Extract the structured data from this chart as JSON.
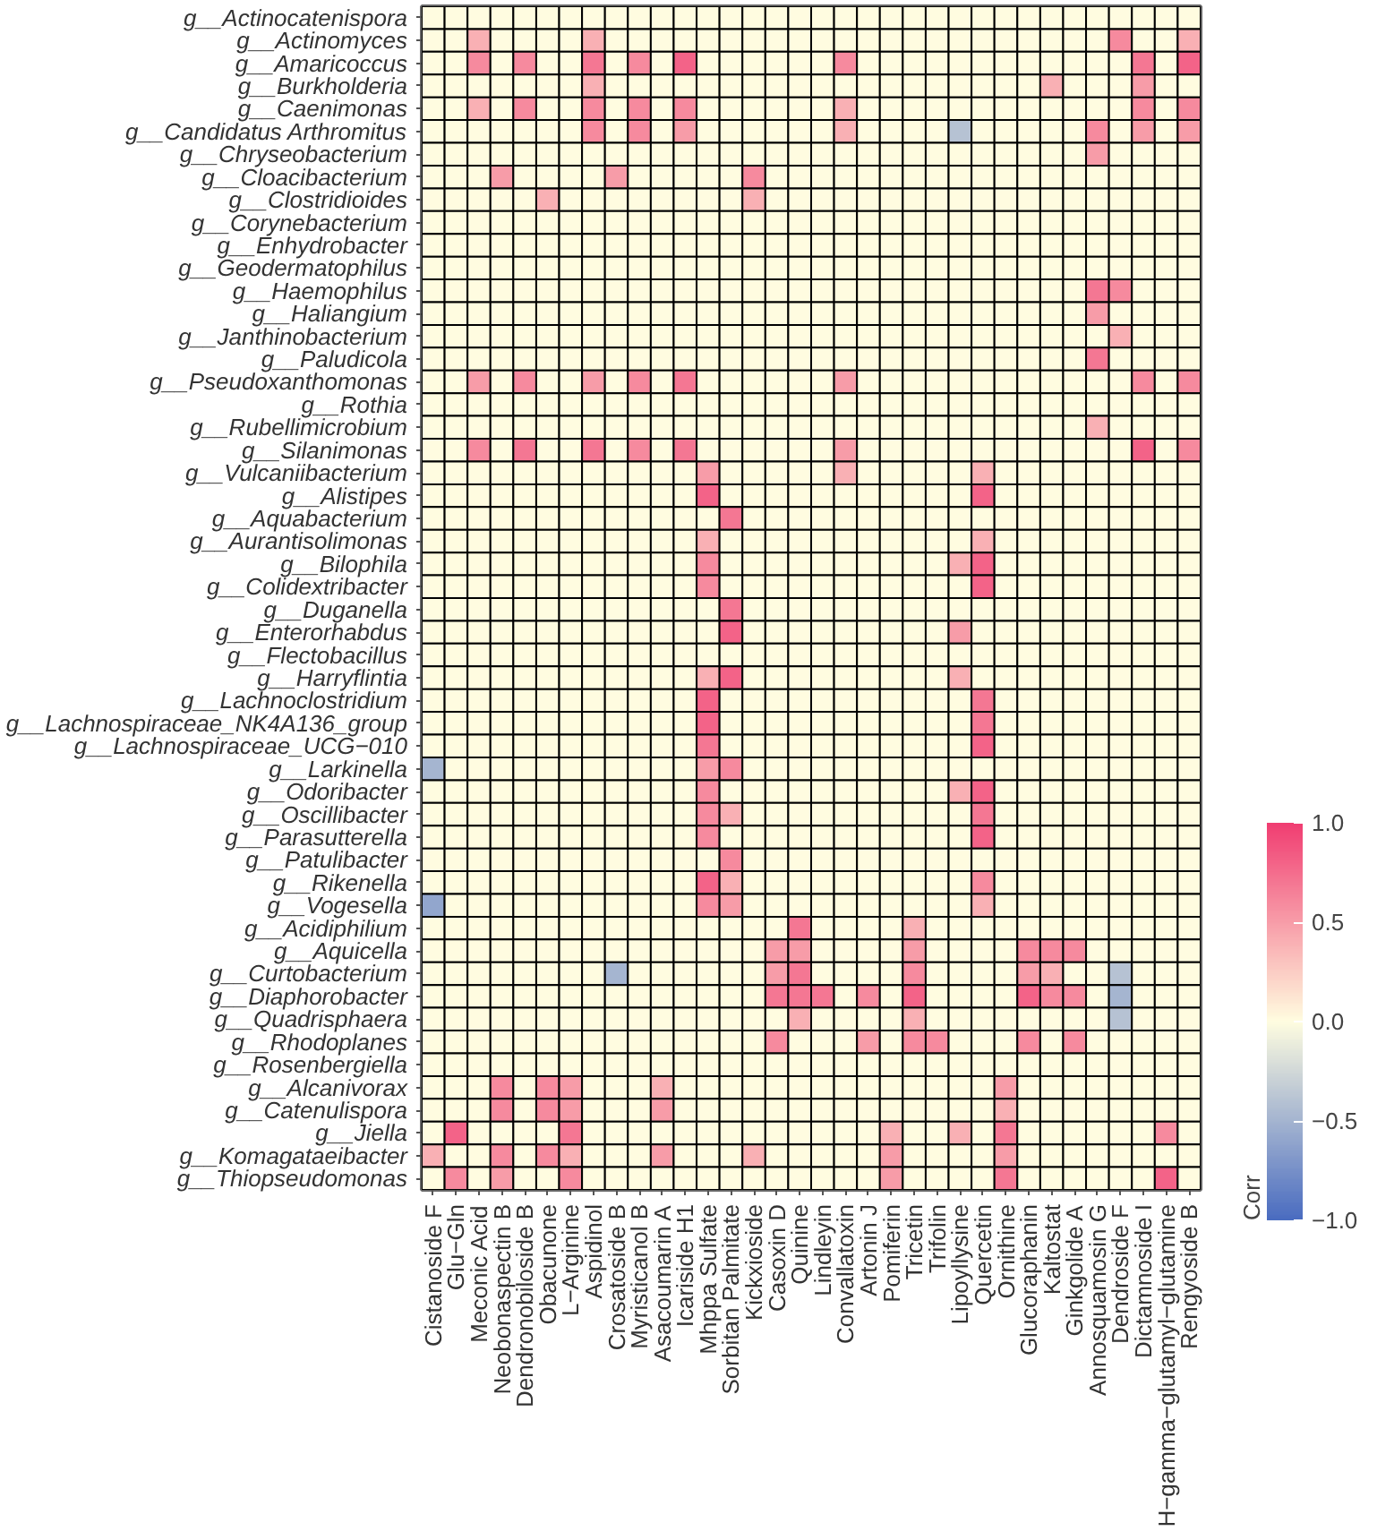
{
  "chart_data": {
    "type": "heatmap",
    "clabel": "Corr",
    "categories": [
      "Cistanoside F",
      "Glu−Gln",
      "Meconic Acid",
      "Neobonaspectin B",
      "Dendronobiloside B",
      "Obacunone",
      "L−Arginine",
      "Aspidinol",
      "Crosatoside B",
      "Myristicanol B",
      "Asacoumarin A",
      "Icariside H1",
      "Mhppa Sulfate",
      "Sorbitan Palmitate",
      "Kickxioside",
      "Casoxin D",
      "Quinine",
      "Lindleyin",
      "Convallatoxin",
      "Artonin J",
      "Pomiferin",
      "Tricetin",
      "Trifolin",
      "Lipoyllysine",
      "Quercetin",
      "Ornithine",
      "Glucoraphanin",
      "Kaltostat",
      "Ginkgolide A",
      "Annosquamosin G",
      "Dendroside F",
      "Dictamnoside I",
      "H−gamma−glutamyl−glutamine",
      "Rengyoside B"
    ],
    "y_categories": [
      "g__Actinocatenispora",
      "g__Actinomyces",
      "g__Amaricoccus",
      "g__Burkholderia",
      "g__Caenimonas",
      "g__Candidatus Arthromitus",
      "g__Chryseobacterium",
      "g__Cloacibacterium",
      "g__Clostridioides",
      "g__Corynebacterium",
      "g__Enhydrobacter",
      "g__Geodermatophilus",
      "g__Haemophilus",
      "g__Haliangium",
      "g__Janthinobacterium",
      "g__Paludicola",
      "g__Pseudoxanthomonas",
      "g__Rothia",
      "g__Rubellimicrobium",
      "g__Silanimonas",
      "g__Vulcaniibacterium",
      "g__Alistipes",
      "g__Aquabacterium",
      "g__Aurantisolimonas",
      "g__Bilophila",
      "g__Colidextribacter",
      "g__Duganella",
      "g__Enterorhabdus",
      "g__Flectobacillus",
      "g__Harryflintia",
      "g__Lachnoclostridium",
      "g__Lachnospiraceae_NK4A136_group",
      "g__Lachnospiraceae_UCG−010",
      "g__Larkinella",
      "g__Odoribacter",
      "g__Oscillibacter",
      "g__Parasutterella",
      "g__Patulibacter",
      "g__Rikenella",
      "g__Vogesella",
      "g__Acidiphilium",
      "g__Aquicella",
      "g__Curtobacterium",
      "g__Diaphorobacter",
      "g__Quadrisphaera",
      "g__Rhodoplanes",
      "g__Rosenbergiella",
      "g__Alcanivorax",
      "g__Catenulispora",
      "g__Jiella",
      "g__Komagataeibacter",
      "g__Thiopseudomonas"
    ],
    "clim": [
      -1,
      1
    ],
    "cticks": [
      {
        "value": -1,
        "label": "−1.0"
      },
      {
        "value": -0.5,
        "label": "−0.5"
      },
      {
        "value": 0,
        "label": "0.0"
      },
      {
        "value": 0.5,
        "label": "0.5"
      },
      {
        "value": 1,
        "label": "1.0"
      }
    ],
    "cells": [
      [
        0,
        0,
        0,
        0,
        0,
        0,
        0,
        0,
        0,
        0,
        0,
        0,
        0,
        0,
        0,
        0,
        0,
        0,
        0,
        0,
        0,
        0,
        0,
        0,
        0,
        0,
        0,
        0,
        0,
        0,
        0,
        0,
        0,
        0
      ],
      [
        0,
        0,
        0.4,
        0,
        0,
        0,
        0,
        0.4,
        0,
        0,
        0,
        0,
        0,
        0,
        0,
        0,
        0,
        0,
        0,
        0,
        0,
        0,
        0,
        0,
        0,
        0,
        0,
        0,
        0,
        0,
        0.6,
        0,
        0,
        0.4
      ],
      [
        0,
        0,
        0.6,
        0,
        0.6,
        0,
        0,
        0.7,
        0,
        0.6,
        0,
        0.8,
        0,
        0,
        0,
        0,
        0,
        0,
        0.6,
        0,
        0,
        0,
        0,
        0,
        0,
        0,
        0,
        0,
        0,
        0,
        0,
        0.7,
        0,
        0.8
      ],
      [
        0,
        0,
        0,
        0,
        0,
        0,
        0,
        0.4,
        0,
        0,
        0,
        0,
        0,
        0,
        0,
        0,
        0,
        0,
        0,
        0,
        0,
        0,
        0,
        0,
        0,
        0,
        0,
        0.4,
        0,
        0,
        0,
        0.5,
        0,
        0
      ],
      [
        0,
        0,
        0.4,
        0,
        0.6,
        0,
        0,
        0.6,
        0,
        0.6,
        0,
        0.6,
        0,
        0,
        0,
        0,
        0,
        0,
        0.4,
        0,
        0,
        0,
        0,
        0,
        0,
        0,
        0,
        0,
        0,
        0,
        0,
        0.6,
        0,
        0.6
      ],
      [
        0,
        0,
        0,
        0,
        0,
        0,
        0,
        0.6,
        0,
        0.6,
        0,
        0.5,
        0,
        0,
        0,
        0,
        0,
        0,
        0.4,
        0,
        0,
        0,
        0,
        -0.4,
        0,
        0,
        0,
        0,
        0,
        0.6,
        0,
        0.5,
        0,
        0.5
      ],
      [
        0,
        0,
        0,
        0,
        0,
        0,
        0,
        0,
        0,
        0,
        0,
        0,
        0,
        0,
        0,
        0,
        0,
        0,
        0,
        0,
        0,
        0,
        0,
        0,
        0,
        0,
        0,
        0,
        0,
        0.5,
        0,
        0,
        0,
        0
      ],
      [
        0,
        0,
        0,
        0.5,
        0,
        0,
        0,
        0,
        0.5,
        0,
        0,
        0,
        0,
        0,
        0.6,
        0,
        0,
        0,
        0,
        0,
        0,
        0,
        0,
        0,
        0,
        0,
        0,
        0,
        0,
        0,
        0,
        0,
        0,
        0
      ],
      [
        0,
        0,
        0,
        0,
        0,
        0.4,
        0,
        0,
        0,
        0,
        0,
        0,
        0,
        0,
        0.4,
        0,
        0,
        0,
        0,
        0,
        0,
        0,
        0,
        0,
        0,
        0,
        0,
        0,
        0,
        0,
        0,
        0,
        0,
        0
      ],
      [
        0,
        0,
        0,
        0,
        0,
        0,
        0,
        0,
        0,
        0,
        0,
        0,
        0,
        0,
        0,
        0,
        0,
        0,
        0,
        0,
        0,
        0,
        0,
        0,
        0,
        0,
        0,
        0,
        0,
        0,
        0,
        0,
        0,
        0
      ],
      [
        0,
        0,
        0,
        0,
        0,
        0,
        0,
        0,
        0,
        0,
        0,
        0,
        0,
        0,
        0,
        0,
        0,
        0,
        0,
        0,
        0,
        0,
        0,
        0,
        0,
        0,
        0,
        0,
        0,
        0,
        0,
        0,
        0,
        0
      ],
      [
        0,
        0,
        0,
        0,
        0,
        0,
        0,
        0,
        0,
        0,
        0,
        0,
        0,
        0,
        0,
        0,
        0,
        0,
        0,
        0,
        0,
        0,
        0,
        0,
        0,
        0,
        0,
        0,
        0,
        0,
        0,
        0,
        0,
        0
      ],
      [
        0,
        0,
        0,
        0,
        0,
        0,
        0,
        0,
        0,
        0,
        0,
        0,
        0,
        0,
        0,
        0,
        0,
        0,
        0,
        0,
        0,
        0,
        0,
        0,
        0,
        0,
        0,
        0,
        0,
        0.7,
        0.6,
        0,
        0,
        0
      ],
      [
        0,
        0,
        0,
        0,
        0,
        0,
        0,
        0,
        0,
        0,
        0,
        0,
        0,
        0,
        0,
        0,
        0,
        0,
        0,
        0,
        0,
        0,
        0,
        0,
        0,
        0,
        0,
        0,
        0,
        0.5,
        0,
        0,
        0,
        0
      ],
      [
        0,
        0,
        0,
        0,
        0,
        0,
        0,
        0,
        0,
        0,
        0,
        0,
        0,
        0,
        0,
        0,
        0,
        0,
        0,
        0,
        0,
        0,
        0,
        0,
        0,
        0,
        0,
        0,
        0,
        0,
        0.4,
        0,
        0,
        0
      ],
      [
        0,
        0,
        0,
        0,
        0,
        0,
        0,
        0,
        0,
        0,
        0,
        0,
        0,
        0,
        0,
        0,
        0,
        0,
        0,
        0,
        0,
        0,
        0,
        0,
        0,
        0,
        0,
        0,
        0,
        0.7,
        0,
        0,
        0,
        0
      ],
      [
        0,
        0,
        0.5,
        0,
        0.6,
        0,
        0,
        0.5,
        0,
        0.6,
        0,
        0.7,
        0,
        0,
        0,
        0,
        0,
        0,
        0.5,
        0,
        0,
        0,
        0,
        0,
        0,
        0,
        0,
        0,
        0,
        0,
        0,
        0.6,
        0,
        0.6
      ],
      [
        0,
        0,
        0,
        0,
        0,
        0,
        0,
        0,
        0,
        0,
        0,
        0,
        0,
        0,
        0,
        0,
        0,
        0,
        0,
        0,
        0,
        0,
        0,
        0,
        0,
        0,
        0,
        0,
        0,
        0,
        0,
        0,
        0,
        0
      ],
      [
        0,
        0,
        0,
        0,
        0,
        0,
        0,
        0,
        0,
        0,
        0,
        0,
        0,
        0,
        0,
        0,
        0,
        0,
        0,
        0,
        0,
        0,
        0,
        0,
        0,
        0,
        0,
        0,
        0,
        0.4,
        0,
        0,
        0,
        0
      ],
      [
        0,
        0,
        0.6,
        0,
        0.7,
        0,
        0,
        0.7,
        0,
        0.6,
        0,
        0.7,
        0,
        0,
        0,
        0,
        0,
        0,
        0.5,
        0,
        0,
        0,
        0,
        0,
        0,
        0,
        0,
        0,
        0,
        0,
        0,
        0.8,
        0,
        0.6
      ],
      [
        0,
        0,
        0,
        0,
        0,
        0,
        0,
        0,
        0,
        0,
        0,
        0,
        0.5,
        0,
        0,
        0,
        0,
        0,
        0.4,
        0,
        0,
        0,
        0,
        0,
        0.4,
        0,
        0,
        0,
        0,
        0,
        0,
        0,
        0,
        0
      ],
      [
        0,
        0,
        0,
        0,
        0,
        0,
        0,
        0,
        0,
        0,
        0,
        0,
        0.8,
        0,
        0,
        0,
        0,
        0,
        0,
        0,
        0,
        0,
        0,
        0,
        0.8,
        0,
        0,
        0,
        0,
        0,
        0,
        0,
        0,
        0
      ],
      [
        0,
        0,
        0,
        0,
        0,
        0,
        0,
        0,
        0,
        0,
        0,
        0,
        0,
        0.7,
        0,
        0,
        0,
        0,
        0,
        0,
        0,
        0,
        0,
        0,
        0,
        0,
        0,
        0,
        0,
        0,
        0,
        0,
        0,
        0
      ],
      [
        0,
        0,
        0,
        0,
        0,
        0,
        0,
        0,
        0,
        0,
        0,
        0,
        0.4,
        0,
        0,
        0,
        0,
        0,
        0,
        0,
        0,
        0,
        0,
        0,
        0.4,
        0,
        0,
        0,
        0,
        0,
        0,
        0,
        0,
        0
      ],
      [
        0,
        0,
        0,
        0,
        0,
        0,
        0,
        0,
        0,
        0,
        0,
        0,
        0.6,
        0,
        0,
        0,
        0,
        0,
        0,
        0,
        0,
        0,
        0,
        0.4,
        0.8,
        0,
        0,
        0,
        0,
        0,
        0,
        0,
        0,
        0
      ],
      [
        0,
        0,
        0,
        0,
        0,
        0,
        0,
        0,
        0,
        0,
        0,
        0,
        0.6,
        0,
        0,
        0,
        0,
        0,
        0,
        0,
        0,
        0,
        0,
        0,
        0.8,
        0,
        0,
        0,
        0,
        0,
        0,
        0,
        0,
        0
      ],
      [
        0,
        0,
        0,
        0,
        0,
        0,
        0,
        0,
        0,
        0,
        0,
        0,
        0,
        0.7,
        0,
        0,
        0,
        0,
        0,
        0,
        0,
        0,
        0,
        0,
        0,
        0,
        0,
        0,
        0,
        0,
        0,
        0,
        0,
        0
      ],
      [
        0,
        0,
        0,
        0,
        0,
        0,
        0,
        0,
        0,
        0,
        0,
        0,
        0,
        0.8,
        0,
        0,
        0,
        0,
        0,
        0,
        0,
        0,
        0,
        0.5,
        0,
        0,
        0,
        0,
        0,
        0,
        0,
        0,
        0,
        0
      ],
      [
        0,
        0,
        0,
        0,
        0,
        0,
        0,
        0,
        0,
        0,
        0,
        0,
        0,
        0,
        0,
        0,
        0,
        0,
        0,
        0,
        0,
        0,
        0,
        0,
        0,
        0,
        0,
        0,
        0,
        0,
        0,
        0,
        0,
        0
      ],
      [
        0,
        0,
        0,
        0,
        0,
        0,
        0,
        0,
        0,
        0,
        0,
        0,
        0.4,
        0.8,
        0,
        0,
        0,
        0,
        0,
        0,
        0,
        0,
        0,
        0.4,
        0,
        0,
        0,
        0,
        0,
        0,
        0,
        0,
        0,
        0
      ],
      [
        0,
        0,
        0,
        0,
        0,
        0,
        0,
        0,
        0,
        0,
        0,
        0,
        0.8,
        0,
        0,
        0,
        0,
        0,
        0,
        0,
        0,
        0,
        0,
        0,
        0.7,
        0,
        0,
        0,
        0,
        0,
        0,
        0,
        0,
        0
      ],
      [
        0,
        0,
        0,
        0,
        0,
        0,
        0,
        0,
        0,
        0,
        0,
        0,
        0.8,
        0,
        0,
        0,
        0,
        0,
        0,
        0,
        0,
        0,
        0,
        0,
        0.7,
        0,
        0,
        0,
        0,
        0,
        0,
        0,
        0,
        0
      ],
      [
        0,
        0,
        0,
        0,
        0,
        0,
        0,
        0,
        0,
        0,
        0,
        0,
        0.7,
        0,
        0,
        0,
        0,
        0,
        0,
        0,
        0,
        0,
        0,
        0,
        0.8,
        0,
        0,
        0,
        0,
        0,
        0,
        0,
        0,
        0
      ],
      [
        -0.5,
        0,
        0,
        0,
        0,
        0,
        0,
        0,
        0,
        0,
        0,
        0,
        0.5,
        0.6,
        0,
        0,
        0,
        0,
        0,
        0,
        0,
        0,
        0,
        0,
        0,
        0,
        0,
        0,
        0,
        0,
        0,
        0,
        0,
        0
      ],
      [
        0,
        0,
        0,
        0,
        0,
        0,
        0,
        0,
        0,
        0,
        0,
        0,
        0.6,
        0,
        0,
        0,
        0,
        0,
        0,
        0,
        0,
        0,
        0,
        0.4,
        0.8,
        0,
        0,
        0,
        0,
        0,
        0,
        0,
        0,
        0
      ],
      [
        0,
        0,
        0,
        0,
        0,
        0,
        0,
        0,
        0,
        0,
        0,
        0,
        0.6,
        0.4,
        0,
        0,
        0,
        0,
        0,
        0,
        0,
        0,
        0,
        0,
        0.7,
        0,
        0,
        0,
        0,
        0,
        0,
        0,
        0,
        0
      ],
      [
        0,
        0,
        0,
        0,
        0,
        0,
        0,
        0,
        0,
        0,
        0,
        0,
        0.6,
        0,
        0,
        0,
        0,
        0,
        0,
        0,
        0,
        0,
        0,
        0,
        0.8,
        0,
        0,
        0,
        0,
        0,
        0,
        0,
        0,
        0
      ],
      [
        0,
        0,
        0,
        0,
        0,
        0,
        0,
        0,
        0,
        0,
        0,
        0,
        0,
        0.6,
        0,
        0,
        0,
        0,
        0,
        0,
        0,
        0,
        0,
        0,
        0,
        0,
        0,
        0,
        0,
        0,
        0,
        0,
        0,
        0
      ],
      [
        0,
        0,
        0,
        0,
        0,
        0,
        0,
        0,
        0,
        0,
        0,
        0,
        0.8,
        0.4,
        0,
        0,
        0,
        0,
        0,
        0,
        0,
        0,
        0,
        0,
        0.6,
        0,
        0,
        0,
        0,
        0,
        0,
        0,
        0,
        0
      ],
      [
        -0.6,
        0,
        0,
        0,
        0,
        0,
        0,
        0,
        0,
        0,
        0,
        0,
        0.6,
        0.5,
        0,
        0,
        0,
        0,
        0,
        0,
        0,
        0,
        0,
        0,
        0.4,
        0,
        0,
        0,
        0,
        0,
        0,
        0,
        0,
        0
      ],
      [
        0,
        0,
        0,
        0,
        0,
        0,
        0,
        0,
        0,
        0,
        0,
        0,
        0,
        0,
        0,
        0,
        0.7,
        0,
        0,
        0,
        0,
        0.4,
        0,
        0,
        0,
        0,
        0,
        0,
        0,
        0,
        0,
        0,
        0,
        0
      ],
      [
        0,
        0,
        0,
        0,
        0,
        0,
        0,
        0,
        0,
        0,
        0,
        0,
        0,
        0,
        0,
        0.5,
        0.5,
        0,
        0,
        0,
        0,
        0.5,
        0,
        0,
        0,
        0,
        0.6,
        0.6,
        0.6,
        0,
        0,
        0,
        0,
        0
      ],
      [
        0,
        0,
        0,
        0,
        0,
        0,
        0,
        0,
        -0.5,
        0,
        0,
        0,
        0,
        0,
        0,
        0.5,
        0.7,
        0,
        0,
        0,
        0,
        0.6,
        0,
        0,
        0,
        0,
        0.5,
        0.4,
        0,
        0,
        -0.4,
        0,
        0,
        0
      ],
      [
        0,
        0,
        0,
        0,
        0,
        0,
        0,
        0,
        0,
        0,
        0,
        0,
        0,
        0,
        0,
        0.7,
        0.7,
        0.7,
        0,
        0.6,
        0,
        0.8,
        0,
        0,
        0,
        0,
        0.8,
        0.6,
        0.6,
        0,
        -0.5,
        0,
        0,
        0
      ],
      [
        0,
        0,
        0,
        0,
        0,
        0,
        0,
        0,
        0,
        0,
        0,
        0,
        0,
        0,
        0,
        0,
        0.4,
        0,
        0,
        0,
        0,
        0.4,
        0,
        0,
        0,
        0,
        0,
        0,
        0,
        0,
        -0.4,
        0,
        0,
        0
      ],
      [
        0,
        0,
        0,
        0,
        0,
        0,
        0,
        0,
        0,
        0,
        0,
        0,
        0,
        0,
        0,
        0.6,
        0,
        0,
        0,
        0.5,
        0,
        0.6,
        0.6,
        0,
        0,
        0,
        0.6,
        0,
        0.6,
        0,
        0,
        0,
        0,
        0
      ],
      [
        0,
        0,
        0,
        0,
        0,
        0,
        0,
        0,
        0,
        0,
        0,
        0,
        0,
        0,
        0,
        0,
        0,
        0,
        0,
        0,
        0,
        0,
        0,
        0,
        0,
        0,
        0,
        0,
        0,
        0,
        0,
        0,
        0,
        0
      ],
      [
        0,
        0,
        0,
        0.6,
        0,
        0.6,
        0.5,
        0,
        0,
        0,
        0.4,
        0,
        0,
        0,
        0,
        0,
        0,
        0,
        0,
        0,
        0,
        0,
        0,
        0,
        0,
        0.5,
        0,
        0,
        0,
        0,
        0,
        0,
        0,
        0
      ],
      [
        0,
        0,
        0,
        0.6,
        0,
        0.6,
        0.5,
        0,
        0,
        0,
        0.5,
        0,
        0,
        0,
        0,
        0,
        0,
        0,
        0,
        0,
        0,
        0,
        0,
        0,
        0,
        0.4,
        0,
        0,
        0,
        0,
        0,
        0,
        0,
        0
      ],
      [
        0,
        0.8,
        0,
        0,
        0,
        0,
        0.7,
        0,
        0,
        0,
        0,
        0,
        0,
        0,
        0,
        0,
        0,
        0,
        0,
        0,
        0.4,
        0,
        0,
        0.4,
        0,
        0.7,
        0,
        0,
        0,
        0,
        0,
        0,
        0.6,
        0
      ],
      [
        0.4,
        0,
        0,
        0.6,
        0,
        0.6,
        0.4,
        0,
        0,
        0,
        0.5,
        0,
        0,
        0,
        0.4,
        0,
        0,
        0,
        0,
        0,
        0.5,
        0,
        0,
        0,
        0,
        0.5,
        0,
        0,
        0,
        0,
        0,
        0,
        0,
        0
      ],
      [
        0,
        0.6,
        0,
        0.5,
        0,
        0,
        0.6,
        0,
        0,
        0,
        0,
        0,
        0,
        0,
        0,
        0,
        0,
        0,
        0,
        0,
        0.5,
        0,
        0,
        0,
        0,
        0.7,
        0,
        0,
        0,
        0,
        0,
        0,
        0.8,
        0
      ]
    ]
  }
}
